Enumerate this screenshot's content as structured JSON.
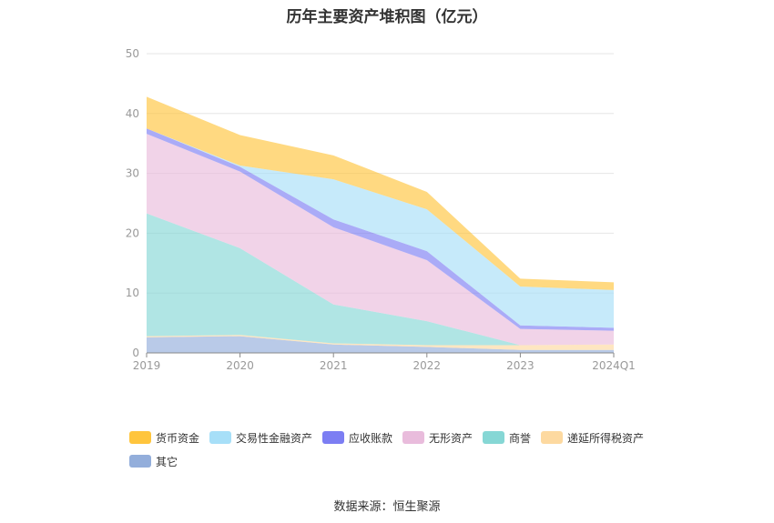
{
  "chart_data": {
    "type": "area",
    "stacked": true,
    "title": "历年主要资产堆积图（亿元）",
    "categories": [
      "2019",
      "2020",
      "2021",
      "2022",
      "2023",
      "2024Q1"
    ],
    "ylim": [
      0,
      50
    ],
    "yticks": [
      "0",
      "10",
      "20",
      "30",
      "40",
      "50"
    ],
    "grid": true,
    "legend_position": "bottom",
    "series": [
      {
        "name": "其它",
        "color": "#93aedb",
        "values": [
          2.6,
          2.8,
          1.4,
          1.0,
          0.5,
          0.5
        ]
      },
      {
        "name": "递延所得税资产",
        "color": "#fdd9a0",
        "values": [
          0.2,
          0.2,
          0.2,
          0.3,
          0.8,
          0.9
        ]
      },
      {
        "name": "商誉",
        "color": "#86d7d5",
        "values": [
          20.5,
          14.5,
          6.5,
          4.0,
          0.0,
          0.0
        ]
      },
      {
        "name": "无形资产",
        "color": "#e9bcdc",
        "values": [
          13.3,
          12.8,
          12.9,
          10.2,
          2.7,
          2.3
        ]
      },
      {
        "name": "应收账款",
        "color": "#7c7ef3",
        "values": [
          0.9,
          0.8,
          1.3,
          1.5,
          0.6,
          0.5
        ]
      },
      {
        "name": "交易性金融资产",
        "color": "#a7dff8",
        "values": [
          0.0,
          0.2,
          6.7,
          7.0,
          6.5,
          6.3
        ]
      },
      {
        "name": "货币资金",
        "color": "#ffc53d",
        "values": [
          5.3,
          5.1,
          4.0,
          2.9,
          1.3,
          1.3
        ]
      }
    ],
    "legend_order": [
      "货币资金",
      "交易性金融资产",
      "应收账款",
      "无形资产",
      "商誉",
      "递延所得税资产",
      "其它"
    ]
  },
  "source_text": "数据来源：恒生聚源"
}
